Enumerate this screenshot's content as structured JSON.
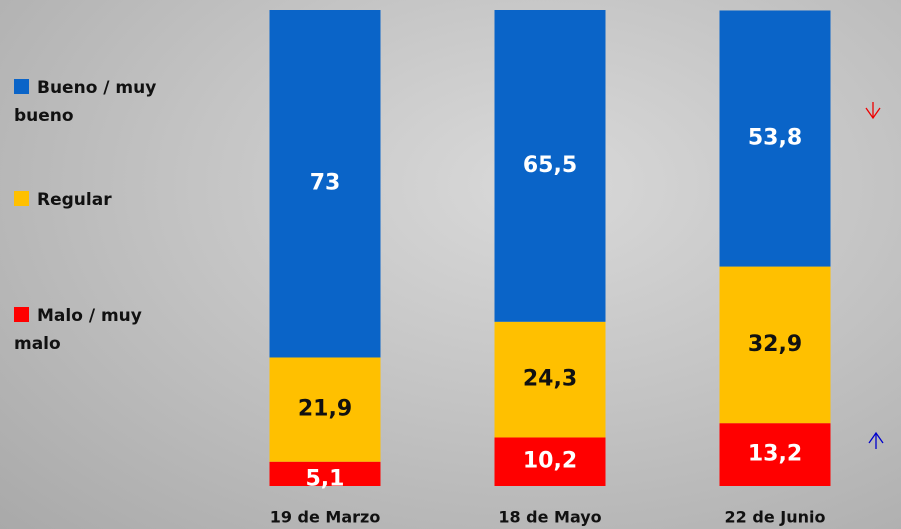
{
  "chart_data": {
    "type": "stacked_bar",
    "categories": [
      "19 de Marzo",
      "18 de Mayo",
      "22 de Junio"
    ],
    "ylim": [
      0,
      100
    ],
    "series": [
      {
        "name": "Malo / muy malo",
        "color": "#ff0000",
        "values": [
          5.1,
          10.2,
          13.2
        ],
        "value_labels": [
          "5,1",
          "10,2",
          "13,2"
        ]
      },
      {
        "name": "Regular",
        "color": "#ffc000",
        "values": [
          21.9,
          24.3,
          32.9
        ],
        "value_labels": [
          "21,9",
          "24,3",
          "32,9"
        ]
      },
      {
        "name": "Bueno / muy bueno",
        "color": "#0a64c8",
        "values": [
          73,
          65.5,
          53.8
        ],
        "value_labels": [
          "73",
          "65,5",
          "53,8"
        ]
      }
    ]
  }
}
